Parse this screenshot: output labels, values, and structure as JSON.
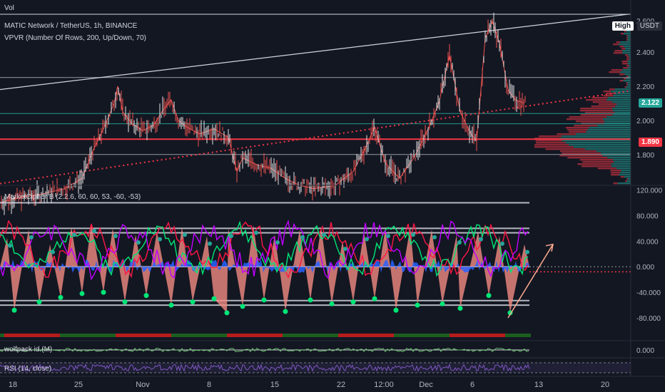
{
  "chart_data": [
    {
      "type": "line",
      "title": "MATIC Network / TetherUS, 1h, BINANCE",
      "subtitle": "VPVR (Number Of Rows, 200, Up/Down, 70)",
      "volume_label": "Vol",
      "ylim": [
        1.62,
        2.62
      ],
      "yticks": [
        "2.400",
        "2.200",
        "2.000",
        "1.800"
      ],
      "ytick_values": [
        2.4,
        2.2,
        2.0,
        1.8
      ],
      "top_tick": "2.600",
      "unit": "USDT",
      "last_price": "2.122",
      "level_price": "1.890",
      "high_tag": "High",
      "price_series": {
        "name": "",
        "points": [
          [
            0,
            1.52
          ],
          [
            30,
            1.55
          ],
          [
            60,
            1.57
          ],
          [
            90,
            1.6
          ],
          [
            115,
            1.66
          ],
          [
            130,
            1.82
          ],
          [
            145,
            1.95
          ],
          [
            160,
            2.1
          ],
          [
            165,
            2.2
          ],
          [
            172,
            2.05
          ],
          [
            185,
            1.98
          ],
          [
            200,
            1.94
          ],
          [
            215,
            1.97
          ],
          [
            230,
            2.07
          ],
          [
            240,
            2.12
          ],
          [
            250,
            2.0
          ],
          [
            262,
            1.96
          ],
          [
            280,
            1.92
          ],
          [
            300,
            1.95
          ],
          [
            320,
            1.9
          ],
          [
            332,
            1.7
          ],
          [
            340,
            1.78
          ],
          [
            360,
            1.74
          ],
          [
            380,
            1.72
          ],
          [
            400,
            1.66
          ],
          [
            420,
            1.62
          ],
          [
            440,
            1.6
          ],
          [
            470,
            1.62
          ],
          [
            495,
            1.7
          ],
          [
            510,
            1.82
          ],
          [
            525,
            1.96
          ],
          [
            540,
            1.75
          ],
          [
            560,
            1.66
          ],
          [
            580,
            1.78
          ],
          [
            600,
            1.95
          ],
          [
            615,
            2.1
          ],
          [
            630,
            2.38
          ],
          [
            645,
            2.05
          ],
          [
            660,
            1.92
          ],
          [
            668,
            1.88
          ],
          [
            680,
            2.48
          ],
          [
            690,
            2.58
          ],
          [
            700,
            2.45
          ],
          [
            712,
            2.18
          ],
          [
            722,
            2.12
          ],
          [
            735,
            2.1
          ]
        ]
      },
      "horizontal_levels": [
        2.62,
        2.25,
        2.04,
        1.98,
        1.89,
        1.8
      ],
      "trendlines": [
        {
          "name": "resistance",
          "from": [
            0,
            2.18
          ],
          "to": [
            880,
            2.62
          ]
        },
        {
          "name": "support",
          "from": [
            0,
            1.63
          ],
          "to": [
            880,
            2.17
          ]
        }
      ]
    },
    {
      "type": "line",
      "title": "MarketCipher B (2.2.6, 60, 60, 53, -60, -53)",
      "ylim": [
        -100,
        125
      ],
      "yticks": [
        "120.000",
        "80.000",
        "40.000",
        "0.000",
        "-40.000",
        "-80.000"
      ],
      "ytick_values": [
        120,
        80,
        40,
        0,
        -40,
        -80
      ],
      "levels": [
        100,
        60,
        53,
        0,
        -53,
        -60
      ],
      "wave_peaks": [
        [
          10,
          45
        ],
        [
          40,
          58
        ],
        [
          70,
          35
        ],
        [
          100,
          62
        ],
        [
          128,
          68
        ],
        [
          158,
          60
        ],
        [
          190,
          50
        ],
        [
          220,
          55
        ],
        [
          255,
          62
        ],
        [
          290,
          48
        ],
        [
          320,
          60
        ],
        [
          355,
          65
        ],
        [
          385,
          50
        ],
        [
          420,
          58
        ],
        [
          450,
          62
        ],
        [
          480,
          40
        ],
        [
          510,
          55
        ],
        [
          540,
          60
        ],
        [
          575,
          62
        ],
        [
          605,
          58
        ],
        [
          640,
          50
        ],
        [
          670,
          55
        ],
        [
          700,
          48
        ],
        [
          735,
          35
        ]
      ],
      "wave_troughs": [
        [
          20,
          -68
        ],
        [
          55,
          -55
        ],
        [
          85,
          -48
        ],
        [
          115,
          -42
        ],
        [
          145,
          -40
        ],
        [
          175,
          -55
        ],
        [
          205,
          -45
        ],
        [
          240,
          -60
        ],
        [
          270,
          -55
        ],
        [
          300,
          -50
        ],
        [
          318,
          -72
        ],
        [
          340,
          -62
        ],
        [
          370,
          -52
        ],
        [
          400,
          -70
        ],
        [
          435,
          -52
        ],
        [
          465,
          -58
        ],
        [
          495,
          -55
        ],
        [
          525,
          -50
        ],
        [
          555,
          -68
        ],
        [
          585,
          -60
        ],
        [
          620,
          -58
        ],
        [
          645,
          -65
        ],
        [
          685,
          -45
        ],
        [
          715,
          -72
        ]
      ],
      "arrow": {
        "from": [
          712,
          -80
        ],
        "to": [
          775,
          35
        ]
      }
    },
    {
      "type": "line",
      "title": "wolfpack id (M)",
      "ylim": [
        -10,
        10
      ],
      "yticks": [
        "0.000"
      ],
      "ytick_values": [
        0
      ]
    },
    {
      "type": "line",
      "title": "RSI (14, close)",
      "ylim": [
        20,
        80
      ],
      "yticks": [],
      "ytick_values": []
    }
  ],
  "x_axis": {
    "labels": [
      "18",
      "25",
      "Nov",
      "8",
      "15",
      "22",
      "12:00",
      "Dec",
      "6",
      "13",
      "20"
    ],
    "positions": [
      18,
      110,
      200,
      293,
      385,
      478,
      538,
      597,
      662,
      755,
      848
    ]
  },
  "colors": {
    "background": "#131722",
    "price": "#ef5350",
    "level_red": "#f23645",
    "level_green": "#26a69a",
    "wave_red": "#f28b82",
    "wave_blue": "#2962ff",
    "green_line": "#00e676",
    "purple_line": "#c000ff",
    "dot_green": "#00e676",
    "last_tag": "#26a69a",
    "level_tag": "#f23645"
  }
}
